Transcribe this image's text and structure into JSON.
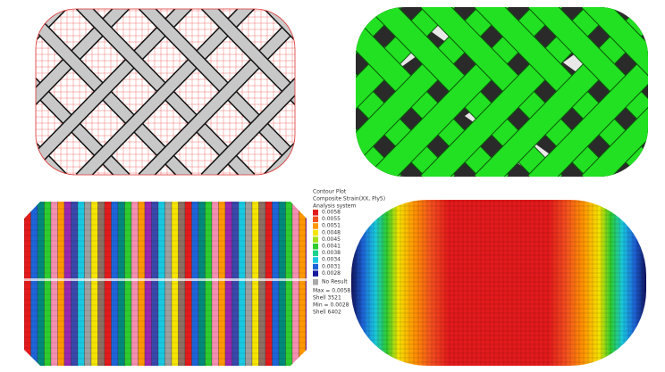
{
  "legend": {
    "title": "Contour Plot",
    "subtitle": "Composite Strain(XX, Ply5)",
    "system": "Analysis system",
    "items": [
      {
        "label": "0.0058",
        "color": "#e31a1c"
      },
      {
        "label": "0.0055",
        "color": "#f4511e"
      },
      {
        "label": "0.0051",
        "color": "#ff9800"
      },
      {
        "label": "0.0048",
        "color": "#f5e400"
      },
      {
        "label": "0.0045",
        "color": "#a6e01a"
      },
      {
        "label": "0.0041",
        "color": "#2ecc2e"
      },
      {
        "label": "0.0038",
        "color": "#19d38a"
      },
      {
        "label": "0.0034",
        "color": "#19c8e0"
      },
      {
        "label": "0.0031",
        "color": "#1e64d8"
      },
      {
        "label": "0.0028",
        "color": "#1a1aa0"
      }
    ],
    "no_result": "No Result",
    "stats": [
      "Max = 0.0058",
      "Shell 3521",
      "Min = 0.0028",
      "Shell 6402"
    ]
  }
}
